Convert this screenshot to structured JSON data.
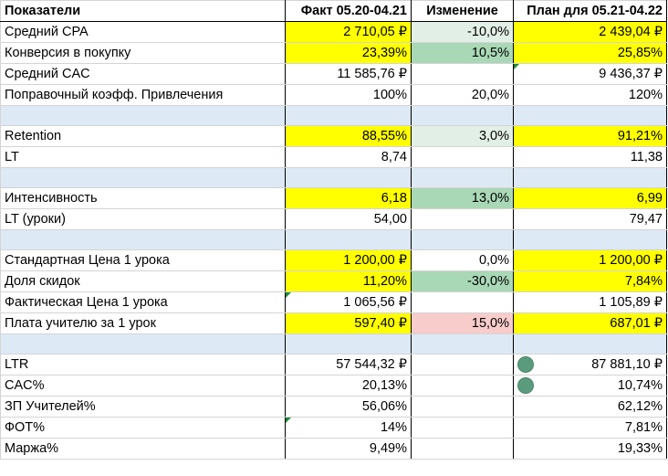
{
  "header": {
    "label": "Показатели",
    "fact": "Факт 05.20-04.21",
    "change": "Изменение",
    "plan": "План для 05.21-04.22"
  },
  "rows": [
    {
      "type": "data",
      "label": "Средний CPA",
      "fact": "2 710,05 ₽",
      "change": "-10,0%",
      "plan": "2 439,04 ₽"
    },
    {
      "type": "data",
      "label": "Конверсия в покупку",
      "fact": "23,39%",
      "change": "10,5%",
      "plan": "25,85%"
    },
    {
      "type": "data",
      "label": "Средний CAC",
      "fact": "11 585,76 ₽",
      "change": "",
      "plan": "9 436,37 ₽"
    },
    {
      "type": "data",
      "label": "Поправочный коэфф. Привлечения",
      "fact": "100%",
      "change": "20,0%",
      "plan": "120%"
    },
    {
      "type": "sep"
    },
    {
      "type": "data",
      "label": "Retention",
      "fact": "88,55%",
      "change": "3,0%",
      "plan": "91,21%"
    },
    {
      "type": "data",
      "label": "LT",
      "fact": "8,74",
      "change": "",
      "plan": "11,38"
    },
    {
      "type": "sep"
    },
    {
      "type": "data",
      "label": "Интенсивность",
      "fact": "6,18",
      "change": "13,0%",
      "plan": "6,99"
    },
    {
      "type": "data",
      "label": "LT (уроки)",
      "fact": "54,00",
      "change": "",
      "plan": "79,47"
    },
    {
      "type": "sep"
    },
    {
      "type": "data",
      "label": "Стандартная Цена 1 урока",
      "fact": "1 200,00 ₽",
      "change": "0,0%",
      "plan": "1 200,00 ₽"
    },
    {
      "type": "data",
      "label": "Доля скидок",
      "fact": "11,20%",
      "change": "-30,0%",
      "plan": "7,84%"
    },
    {
      "type": "data",
      "label": "Фактическая Цена 1 урока",
      "fact": "1 065,56 ₽",
      "change": "",
      "plan": "1 105,89 ₽"
    },
    {
      "type": "data",
      "label": "Плата учителю за 1 урок",
      "fact": "597,40 ₽",
      "change": "15,0%",
      "plan": "687,01 ₽"
    },
    {
      "type": "sep"
    },
    {
      "type": "data",
      "label": "LTR",
      "fact": "57 544,32 ₽",
      "change": "",
      "plan": "87 881,10 ₽"
    },
    {
      "type": "data",
      "label": "CAC%",
      "fact": "20,13%",
      "change": "",
      "plan": "10,74%"
    },
    {
      "type": "data",
      "label": "ЗП Учителей%",
      "fact": "56,06%",
      "change": "",
      "plan": "62,12%"
    },
    {
      "type": "data",
      "label": "ФОТ%",
      "fact": "14%",
      "change": "",
      "plan": "7,81%"
    },
    {
      "type": "data",
      "label": "Маржа%",
      "fact": "9,49%",
      "change": "",
      "plan": "19,33%"
    }
  ],
  "colors": {
    "highlight_yellow": "#ffff00",
    "change_light_green": "#e2efe6",
    "change_green": "#a9d8b6",
    "change_pink": "#f9cccc",
    "separator_blue": "#dde9f5",
    "status_dot": "#5a9b7e",
    "comment_marker": "#1e8a3a"
  }
}
